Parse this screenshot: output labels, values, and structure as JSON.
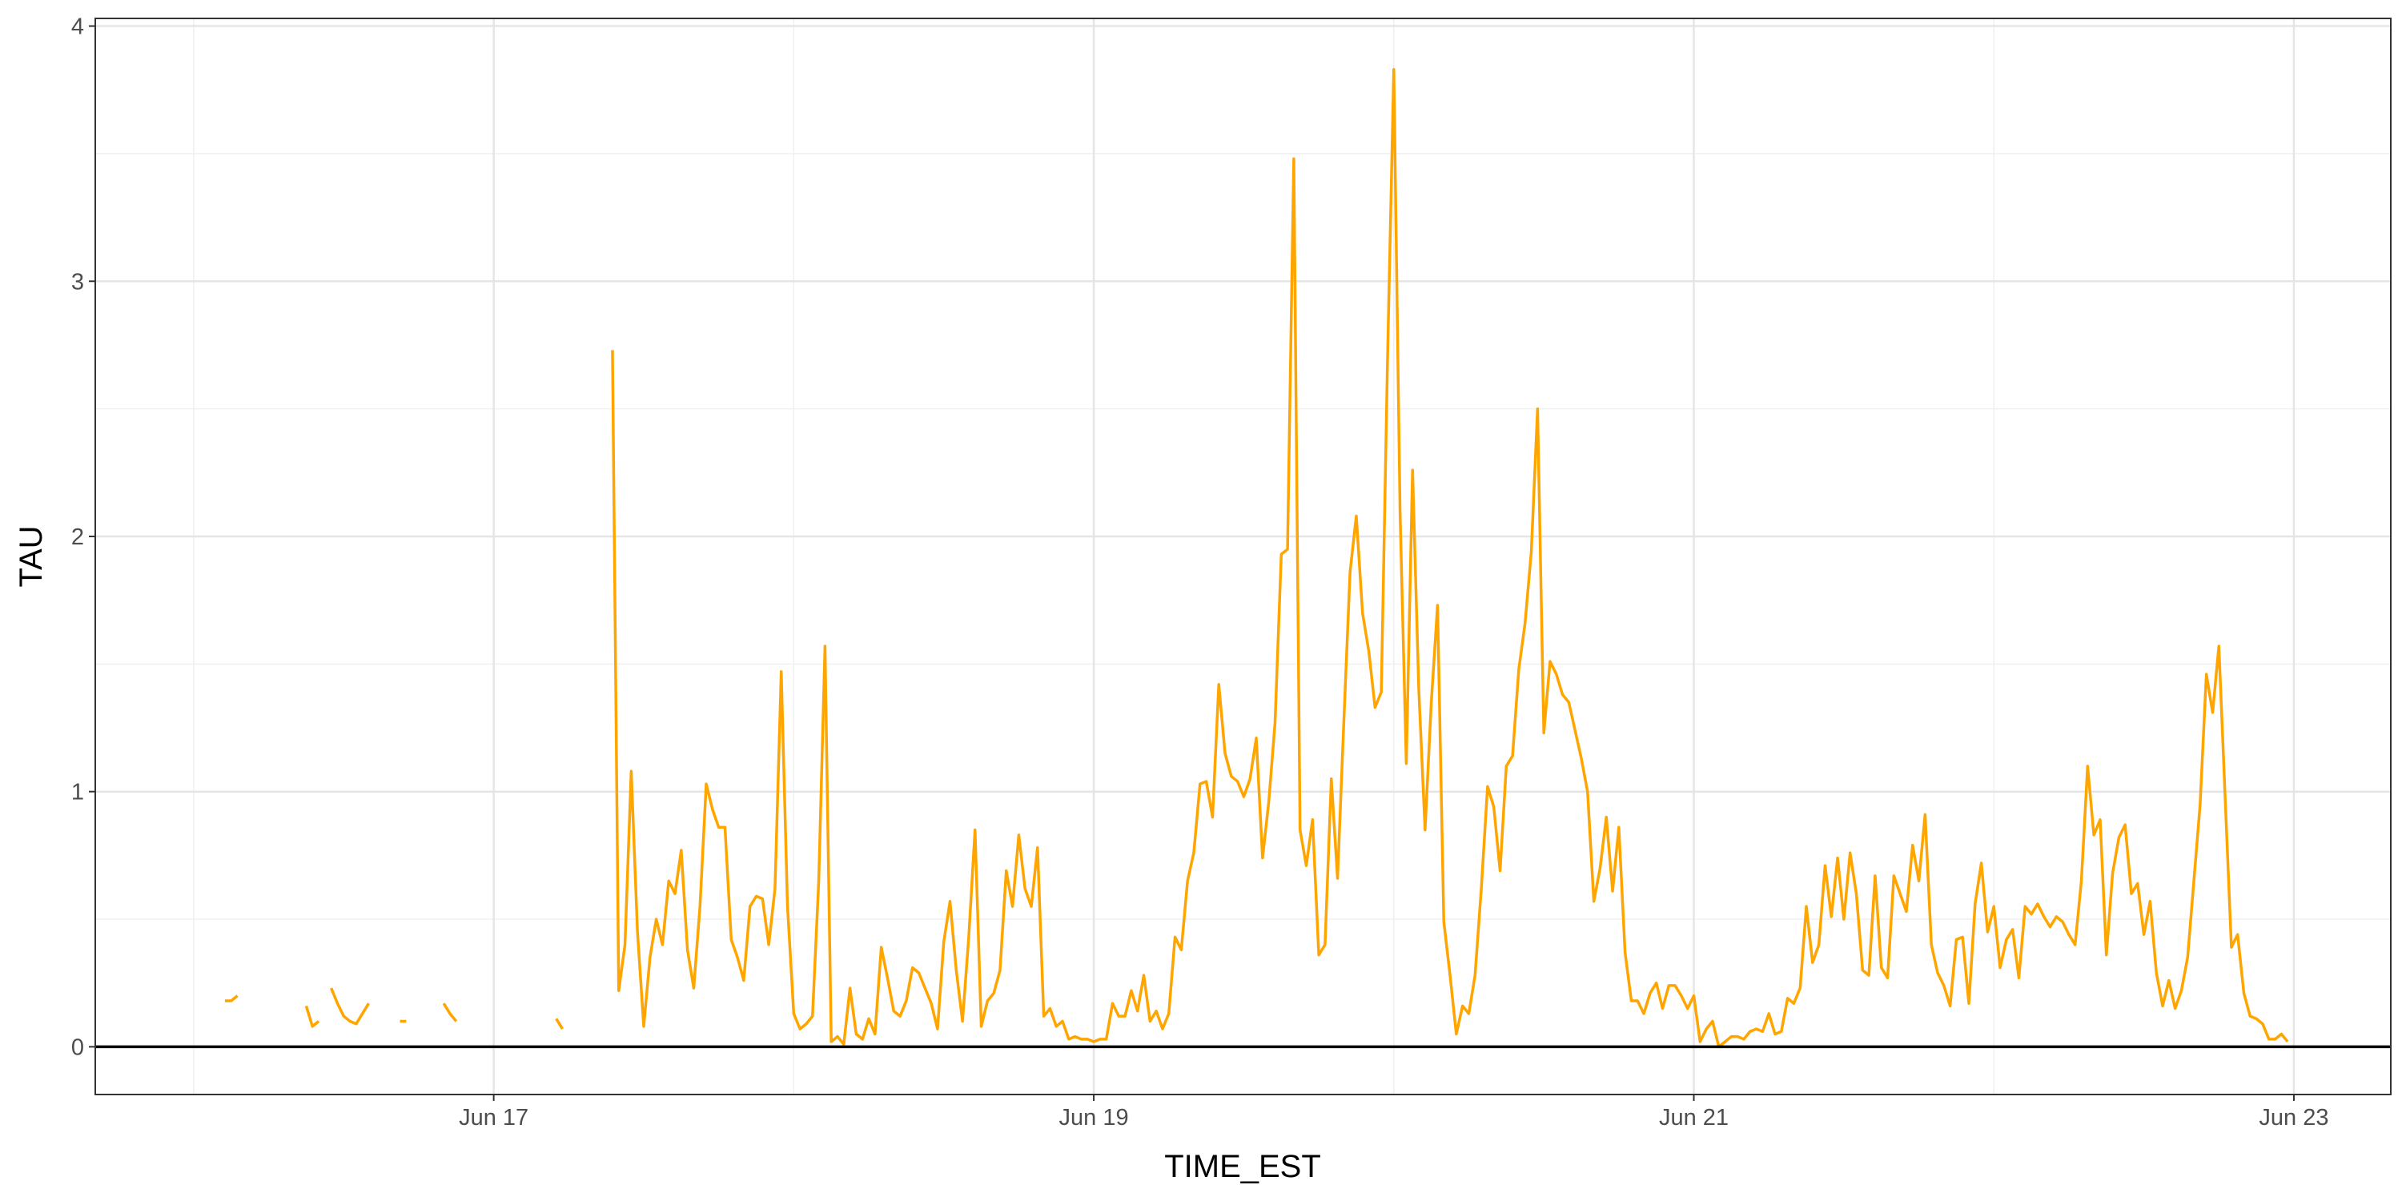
{
  "chart_data": {
    "type": "line",
    "x_label": "TIME_EST",
    "y_label": "TAU",
    "color": "#FFA500",
    "grid": true,
    "xlim": [
      15.672,
      23.323
    ],
    "ylim": [
      -0.187,
      4.03
    ],
    "xticks": [
      {
        "value": 17,
        "label": "Jun 17"
      },
      {
        "value": 19,
        "label": "Jun 19"
      },
      {
        "value": 21,
        "label": "Jun 21"
      },
      {
        "value": 23,
        "label": "Jun 23"
      }
    ],
    "yticks": [
      0,
      1,
      2,
      3,
      4
    ],
    "hline": 0,
    "x": [
      16.1042,
      16.125,
      16.1458,
      16.1667,
      16.1875,
      16.2083,
      16.2292,
      16.25,
      16.2708,
      16.2917,
      16.3125,
      16.3333,
      16.3542,
      16.375,
      16.3958,
      16.4167,
      16.4375,
      16.4583,
      16.4792,
      16.5,
      16.5208,
      16.5417,
      16.5625,
      16.5833,
      16.6042,
      16.625,
      16.6458,
      16.6667,
      16.6875,
      16.7083,
      16.7292,
      16.75,
      16.7708,
      16.7917,
      16.8125,
      16.8333,
      16.8542,
      16.875,
      16.8958,
      16.9167,
      16.9375,
      16.9583,
      16.9792,
      17,
      17.0208,
      17.0417,
      17.0625,
      17.0833,
      17.1042,
      17.125,
      17.1458,
      17.1667,
      17.1875,
      17.2083,
      17.2292,
      17.25,
      17.2708,
      17.2917,
      17.3125,
      17.3333,
      17.3542,
      17.375,
      17.3958,
      17.4167,
      17.4375,
      17.4583,
      17.4792,
      17.5,
      17.5208,
      17.5417,
      17.5625,
      17.5833,
      17.6042,
      17.625,
      17.6458,
      17.6667,
      17.6875,
      17.7083,
      17.7292,
      17.75,
      17.7708,
      17.7917,
      17.8125,
      17.8333,
      17.8542,
      17.875,
      17.8958,
      17.9167,
      17.9375,
      17.9583,
      17.9792,
      18,
      18.0208,
      18.0417,
      18.0625,
      18.0833,
      18.1042,
      18.125,
      18.1458,
      18.1667,
      18.1875,
      18.2083,
      18.2292,
      18.25,
      18.2708,
      18.2917,
      18.3125,
      18.3333,
      18.3542,
      18.375,
      18.3958,
      18.4167,
      18.4375,
      18.4583,
      18.4792,
      18.5,
      18.5208,
      18.5417,
      18.5625,
      18.5833,
      18.6042,
      18.625,
      18.6458,
      18.6667,
      18.6875,
      18.7083,
      18.7292,
      18.75,
      18.7708,
      18.7917,
      18.8125,
      18.8333,
      18.8542,
      18.875,
      18.8958,
      18.9167,
      18.9375,
      18.9583,
      18.9792,
      19,
      19.0208,
      19.0417,
      19.0625,
      19.0833,
      19.1042,
      19.125,
      19.1458,
      19.1667,
      19.1875,
      19.2083,
      19.2292,
      19.25,
      19.2708,
      19.2917,
      19.3125,
      19.3333,
      19.3542,
      19.375,
      19.3958,
      19.4167,
      19.4375,
      19.4583,
      19.4792,
      19.5,
      19.5208,
      19.5417,
      19.5625,
      19.5833,
      19.6042,
      19.625,
      19.6458,
      19.6667,
      19.6875,
      19.7083,
      19.7292,
      19.75,
      19.7708,
      19.7917,
      19.8125,
      19.8333,
      19.8542,
      19.875,
      19.8958,
      19.9167,
      19.9375,
      19.9583,
      19.9792,
      20,
      20.0208,
      20.0417,
      20.0625,
      20.0833,
      20.1042,
      20.125,
      20.1458,
      20.1667,
      20.1875,
      20.2083,
      20.2292,
      20.25,
      20.2708,
      20.2917,
      20.3125,
      20.3333,
      20.3542,
      20.375,
      20.3958,
      20.4167,
      20.4375,
      20.4583,
      20.4792,
      20.5,
      20.5208,
      20.5417,
      20.5625,
      20.5833,
      20.6042,
      20.625,
      20.6458,
      20.6667,
      20.6875,
      20.7083,
      20.7292,
      20.75,
      20.7708,
      20.7917,
      20.8125,
      20.8333,
      20.8542,
      20.875,
      20.8958,
      20.9167,
      20.9375,
      20.9583,
      20.9792,
      21,
      21.0208,
      21.0417,
      21.0625,
      21.0833,
      21.1042,
      21.125,
      21.1458,
      21.1667,
      21.1875,
      21.2083,
      21.2292,
      21.25,
      21.2708,
      21.2917,
      21.3125,
      21.3333,
      21.3542,
      21.375,
      21.3958,
      21.4167,
      21.4375,
      21.4583,
      21.4792,
      21.5,
      21.5208,
      21.5417,
      21.5625,
      21.5833,
      21.6042,
      21.625,
      21.6458,
      21.6667,
      21.6875,
      21.7083,
      21.7292,
      21.75,
      21.7708,
      21.7917,
      21.8125,
      21.8333,
      21.8542,
      21.875,
      21.8958,
      21.9167,
      21.9375,
      21.9583,
      21.9792,
      22,
      22.0208,
      22.0417,
      22.0625,
      22.0833,
      22.1042,
      22.125,
      22.1458,
      22.1667,
      22.1875,
      22.2083,
      22.2292,
      22.25,
      22.2708,
      22.2917,
      22.3125,
      22.3333,
      22.3542,
      22.375,
      22.3958,
      22.4167,
      22.4375,
      22.4583,
      22.4792,
      22.5,
      22.5208,
      22.5417,
      22.5625,
      22.5833,
      22.6042,
      22.625,
      22.6458,
      22.6667,
      22.6875,
      22.7083,
      22.7292,
      22.75,
      22.7708,
      22.7917,
      22.8125,
      22.8333,
      22.8542,
      22.875,
      22.8958,
      22.9167,
      22.9375,
      22.9583,
      22.9792
    ],
    "values": [
      0.18,
      0.18,
      0.2,
      null,
      null,
      null,
      null,
      null,
      null,
      null,
      null,
      null,
      null,
      0.16,
      0.08,
      0.1,
      null,
      0.23,
      0.17,
      0.12,
      0.1,
      0.09,
      0.13,
      0.17,
      null,
      null,
      null,
      null,
      0.1,
      0.1,
      null,
      null,
      null,
      null,
      null,
      0.17,
      0.13,
      0.1,
      null,
      null,
      null,
      null,
      null,
      null,
      null,
      null,
      null,
      null,
      null,
      null,
      null,
      null,
      null,
      0.11,
      0.07,
      null,
      null,
      null,
      null,
      null,
      null,
      null,
      2.73,
      0.22,
      0.4,
      1.08,
      0.45,
      0.08,
      0.35,
      0.5,
      0.4,
      0.65,
      0.6,
      0.77,
      0.38,
      0.23,
      0.55,
      1.03,
      0.93,
      0.86,
      0.86,
      0.42,
      0.35,
      0.26,
      0.55,
      0.59,
      0.58,
      0.4,
      0.62,
      1.47,
      0.55,
      0.13,
      0.07,
      0.09,
      0.12,
      0.65,
      1.57,
      0.02,
      0.04,
      0.01,
      0.23,
      0.05,
      0.03,
      0.11,
      0.05,
      0.39,
      0.27,
      0.14,
      0.12,
      0.18,
      0.31,
      0.29,
      0.23,
      0.17,
      0.07,
      0.41,
      0.57,
      0.3,
      0.1,
      0.43,
      0.85,
      0.08,
      0.18,
      0.21,
      0.3,
      0.69,
      0.55,
      0.83,
      0.62,
      0.55,
      0.78,
      0.12,
      0.15,
      0.08,
      0.1,
      0.03,
      0.04,
      0.03,
      0.03,
      0.02,
      0.03,
      0.03,
      0.17,
      0.12,
      0.12,
      0.22,
      0.14,
      0.28,
      0.1,
      0.14,
      0.07,
      0.13,
      0.43,
      0.38,
      0.65,
      0.76,
      1.03,
      1.04,
      0.9,
      1.42,
      1.15,
      1.06,
      1.04,
      0.98,
      1.05,
      1.21,
      0.74,
      0.96,
      1.27,
      1.93,
      1.95,
      3.48,
      0.85,
      0.71,
      0.89,
      0.36,
      0.4,
      1.05,
      0.66,
      1.27,
      1.86,
      2.08,
      1.7,
      1.55,
      1.33,
      1.39,
      2.7,
      3.83,
      2.1,
      1.11,
      2.26,
      1.4,
      0.85,
      1.35,
      1.73,
      0.49,
      0.28,
      0.05,
      0.16,
      0.13,
      0.28,
      0.62,
      1.02,
      0.94,
      0.69,
      1.1,
      1.14,
      1.48,
      1.66,
      1.94,
      2.5,
      1.23,
      1.51,
      1.46,
      1.38,
      1.35,
      1.24,
      1.13,
      1.0,
      0.57,
      0.7,
      0.9,
      0.61,
      0.86,
      0.37,
      0.18,
      0.18,
      0.13,
      0.21,
      0.25,
      0.15,
      0.24,
      0.24,
      0.2,
      0.15,
      0.2,
      0.02,
      0.07,
      0.1,
      0,
      0.02,
      0.04,
      0.04,
      0.03,
      0.06,
      0.07,
      0.06,
      0.13,
      0.05,
      0.06,
      0.19,
      0.17,
      0.23,
      0.55,
      0.33,
      0.4,
      0.71,
      0.51,
      0.74,
      0.5,
      0.76,
      0.6,
      0.3,
      0.28,
      0.67,
      0.31,
      0.27,
      0.67,
      0.6,
      0.53,
      0.79,
      0.65,
      0.91,
      0.4,
      0.29,
      0.24,
      0.16,
      0.42,
      0.43,
      0.17,
      0.56,
      0.72,
      0.45,
      0.55,
      0.31,
      0.42,
      0.46,
      0.27,
      0.55,
      0.52,
      0.56,
      0.51,
      0.47,
      0.51,
      0.49,
      0.44,
      0.4,
      0.65,
      1.1,
      0.83,
      0.89,
      0.36,
      0.68,
      0.82,
      0.87,
      0.6,
      0.64,
      0.44,
      0.57,
      0.29,
      0.16,
      0.26,
      0.15,
      0.22,
      0.35,
      0.65,
      0.95,
      1.46,
      1.31,
      1.57,
      0.98,
      0.39,
      0.44,
      0.21,
      0.12,
      0.11,
      0.09,
      0.03,
      0.03,
      0.05,
      0.02
    ]
  }
}
